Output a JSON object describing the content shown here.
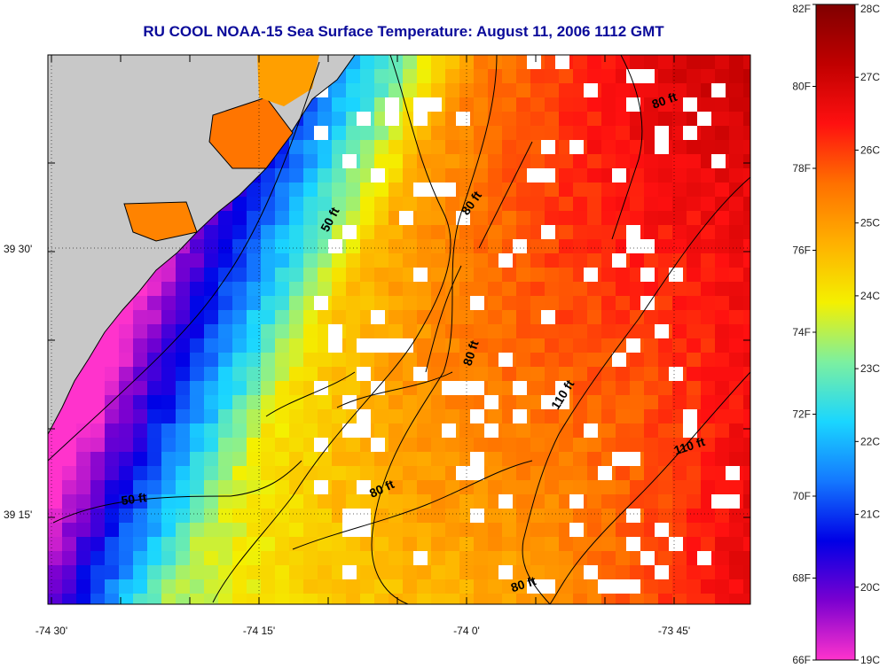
{
  "title": "RU COOL  NOAA-15  Sea Surface Temperature:  August 11, 2006 1112 GMT",
  "map": {
    "lon_ticks": [
      "-74 30'",
      "-74 15'",
      "-74 0'",
      "-73 45'"
    ],
    "lat_ticks": [
      "39 30'",
      "39 15'"
    ],
    "contour_labels": [
      {
        "text": "50 ft",
        "lon": -74.16,
        "lat": 39.525,
        "rotate": -62
      },
      {
        "text": "50 ft",
        "lon": -74.4,
        "lat": 39.26,
        "rotate": -8
      },
      {
        "text": "80 ft",
        "lon": -73.99,
        "lat": 39.54,
        "rotate": -55
      },
      {
        "text": "80 ft",
        "lon": -73.99,
        "lat": 39.4,
        "rotate": -72
      },
      {
        "text": "80 ft",
        "lon": -74.1,
        "lat": 39.27,
        "rotate": -25
      },
      {
        "text": "80 ft",
        "lon": -73.93,
        "lat": 39.18,
        "rotate": -18
      },
      {
        "text": "80 ft",
        "lon": -73.76,
        "lat": 39.635,
        "rotate": -20
      },
      {
        "text": "110 ft",
        "lon": -73.88,
        "lat": 39.36,
        "rotate": -58
      },
      {
        "text": "110 ft",
        "lon": -73.73,
        "lat": 39.31,
        "rotate": -18
      }
    ]
  },
  "colorbar": {
    "f_labels": [
      "82F",
      "80F",
      "78F",
      "76F",
      "74F",
      "72F",
      "70F",
      "68F",
      "66F"
    ],
    "c_labels": [
      "28C",
      "27C",
      "26C",
      "25C",
      "24C",
      "23C",
      "22C",
      "21C",
      "20C",
      "19C"
    ],
    "gradient": [
      "#ff33cc",
      "#7a00d0",
      "#0000e6",
      "#1478ff",
      "#1ad6ff",
      "#7cf0a0",
      "#f4f000",
      "#ffb000",
      "#ff7000",
      "#ff1010",
      "#c00000",
      "#800000"
    ]
  },
  "colors": {
    "land": "#c8c8c8",
    "title": "#0a0a9a"
  }
}
